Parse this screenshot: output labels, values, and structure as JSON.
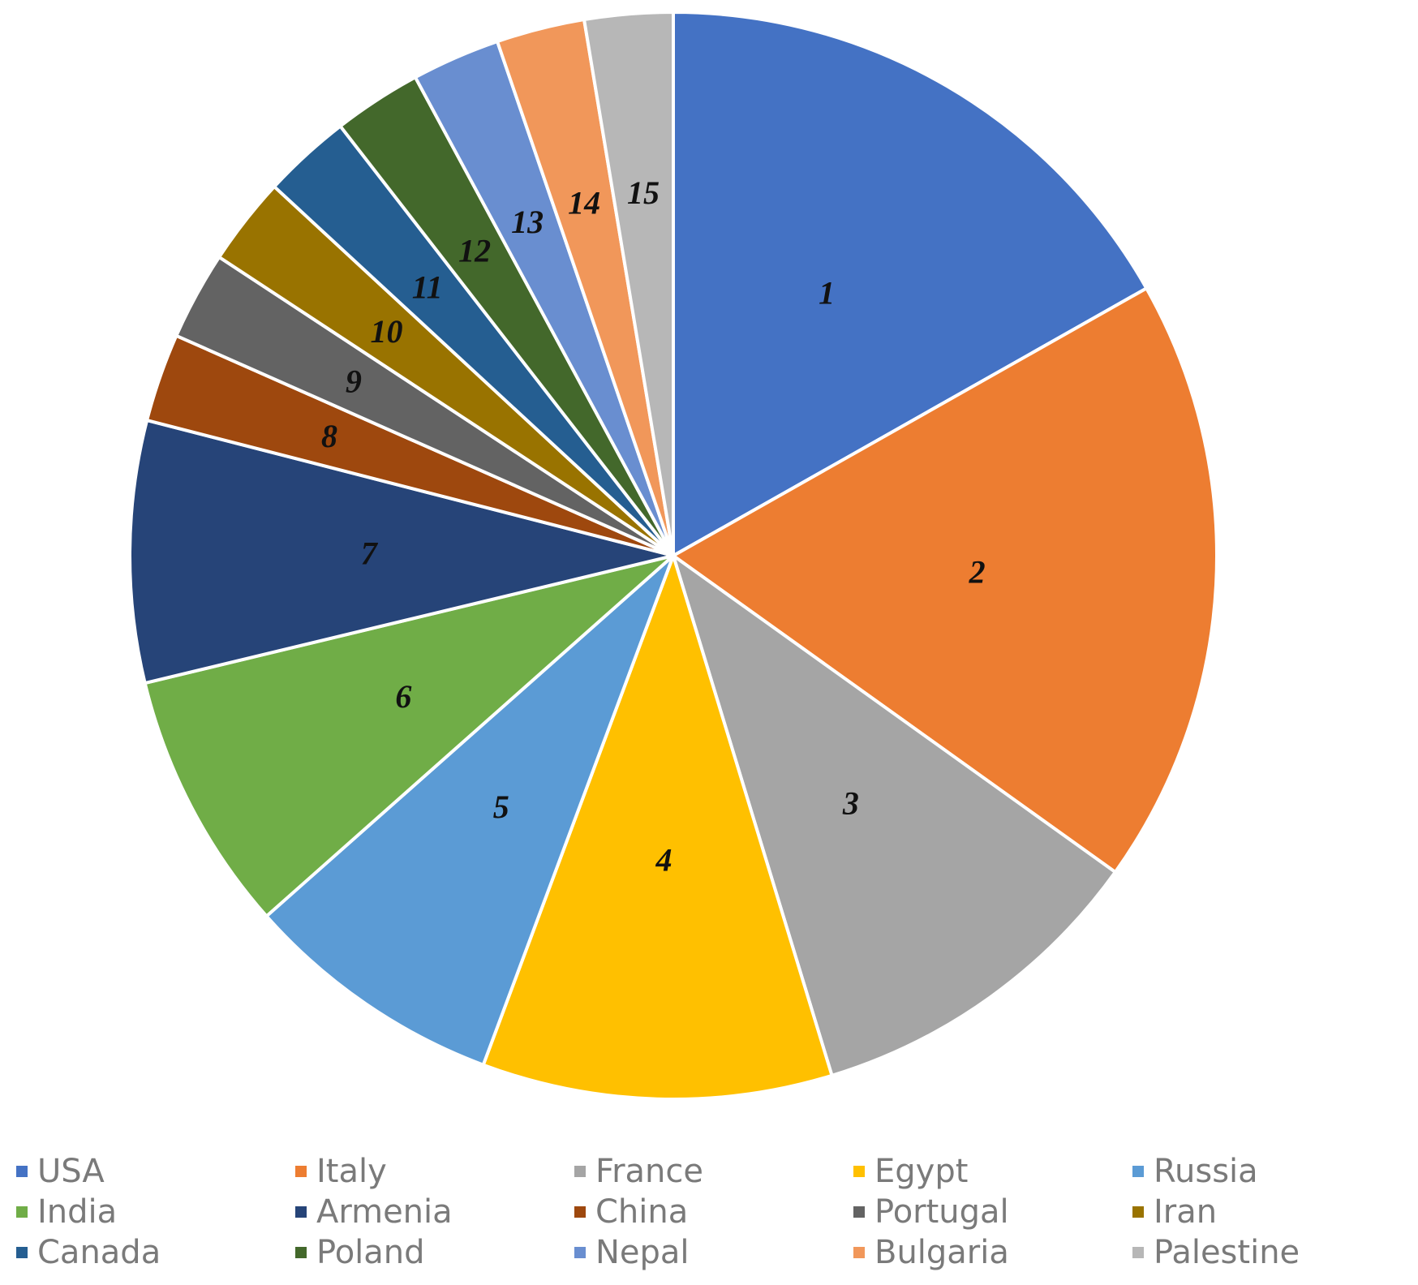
{
  "chart_data": {
    "type": "pie",
    "slice_labels": [
      "1",
      "2",
      "3",
      "4",
      "5",
      "6",
      "7",
      "8",
      "9",
      "10",
      "11",
      "12",
      "13",
      "14",
      "15"
    ],
    "categories": [
      "USA",
      "Italy",
      "France",
      "Egypt",
      "Russia",
      "India",
      "Armenia",
      "China",
      "Portugal",
      "Iran",
      "Canada",
      "Poland",
      "Nepal",
      "Bulgaria",
      "Palestine"
    ],
    "values": [
      17.3,
      18.6,
      10.7,
      10.7,
      8.0,
      8.0,
      8.0,
      2.7,
      2.7,
      2.7,
      2.7,
      2.7,
      2.7,
      2.7,
      2.7
    ],
    "colors": [
      "#4472C4",
      "#ED7D31",
      "#A5A5A5",
      "#FFC000",
      "#5B9BD5",
      "#70AD47",
      "#264478",
      "#9E480E",
      "#636363",
      "#997300",
      "#255E91",
      "#43682B",
      "#698ED0",
      "#F1975A",
      "#B7B7B7"
    ],
    "start_angle_deg": 0,
    "direction": "clockwise",
    "legend_position": "bottom",
    "legend_columns": 5
  }
}
